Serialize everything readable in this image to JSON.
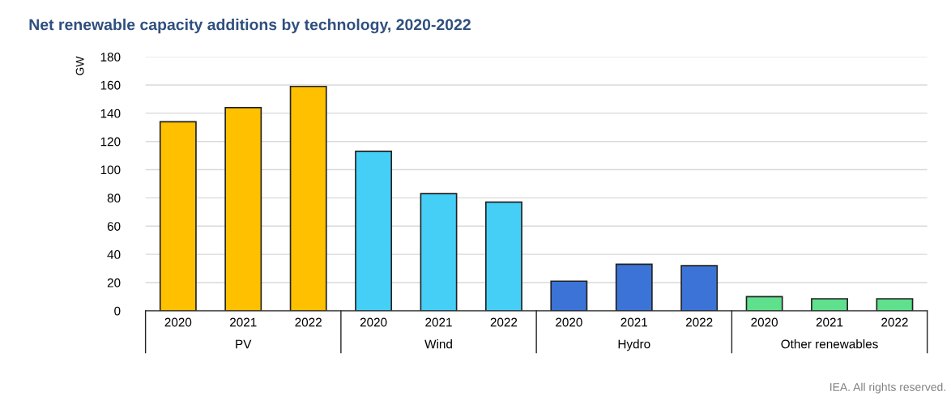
{
  "chart_data": {
    "type": "bar",
    "title": "Net renewable capacity additions by technology, 2020-2022",
    "ylabel": "GW",
    "categories": [
      "2020",
      "2021",
      "2022",
      "2020",
      "2021",
      "2022",
      "2020",
      "2021",
      "2022",
      "2020",
      "2021",
      "2022"
    ],
    "series": [
      {
        "name": "PV",
        "color": "#ffc000",
        "values": [
          134,
          144,
          159,
          null,
          null,
          null,
          null,
          null,
          null,
          null,
          null,
          null
        ]
      },
      {
        "name": "Wind",
        "color": "#45cff7",
        "values": [
          null,
          null,
          null,
          113,
          83,
          77,
          null,
          null,
          null,
          null,
          null,
          null
        ]
      },
      {
        "name": "Hydro",
        "color": "#3b74d6",
        "values": [
          null,
          null,
          null,
          null,
          null,
          null,
          21,
          33,
          32,
          null,
          null,
          null
        ]
      },
      {
        "name": "Other renewables",
        "color": "#5fe08c",
        "values": [
          null,
          null,
          null,
          null,
          null,
          null,
          null,
          null,
          null,
          10,
          8.5,
          8.5
        ]
      }
    ],
    "ylim": [
      0,
      180
    ],
    "yticks": [
      0,
      20,
      40,
      60,
      80,
      100,
      120,
      140,
      160,
      180
    ],
    "grid": "y",
    "legend": false,
    "annotations": [
      "IEA. All rights reserved."
    ]
  }
}
